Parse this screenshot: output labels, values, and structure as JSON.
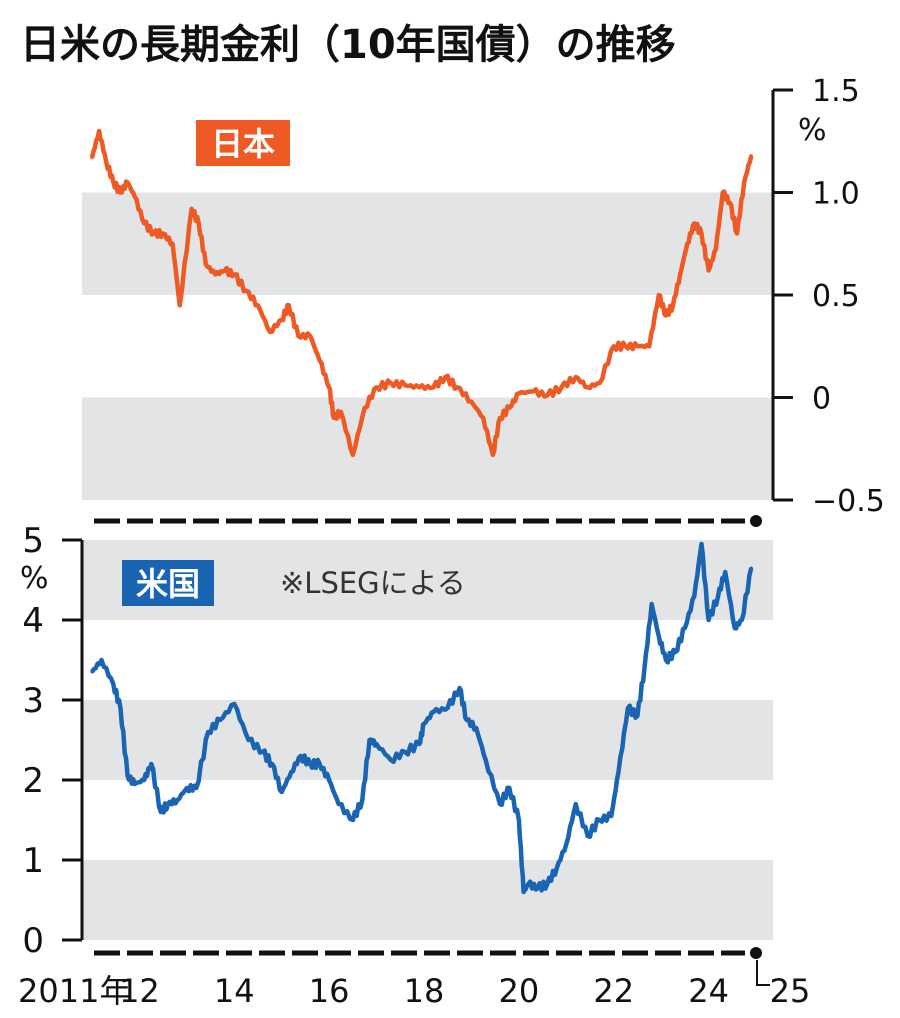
{
  "title": "日米の長期金利（10年国債）の推移",
  "source_note": "※LSEGによる",
  "colors": {
    "japan": "#ef5a24",
    "us": "#1a64b4",
    "band": "#e3e4e6",
    "axis": "#111111"
  },
  "chart_data": [
    {
      "type": "line",
      "label": "日本",
      "y_unit": "%",
      "ylim": [
        -0.5,
        1.5
      ],
      "xlim": [
        2011.0,
        2025.0
      ],
      "y_ticks": [
        {
          "value": 1.5,
          "label": "1.5"
        },
        {
          "value": 1.0,
          "label": "1.0"
        },
        {
          "value": 0.5,
          "label": "0.5"
        },
        {
          "value": 0.0,
          "label": "0"
        },
        {
          "value": -0.5,
          "label": "−0.5"
        }
      ],
      "bands": [
        [
          0.5,
          1.0
        ],
        [
          -0.5,
          0.0
        ]
      ],
      "x": [
        2011.0,
        2011.15,
        2011.3,
        2011.45,
        2011.6,
        2011.75,
        2011.9,
        2012.1,
        2012.3,
        2012.5,
        2012.7,
        2012.85,
        2013.1,
        2013.25,
        2013.4,
        2013.6,
        2013.8,
        2014.0,
        2014.25,
        2014.5,
        2014.75,
        2015.0,
        2015.15,
        2015.35,
        2015.6,
        2015.8,
        2016.0,
        2016.1,
        2016.25,
        2016.5,
        2016.75,
        2017.0,
        2017.3,
        2017.6,
        2017.9,
        2018.2,
        2018.45,
        2018.7,
        2019.0,
        2019.25,
        2019.45,
        2019.6,
        2019.8,
        2020.0,
        2020.3,
        2020.6,
        2020.9,
        2021.2,
        2021.45,
        2021.7,
        2022.0,
        2022.25,
        2022.5,
        2022.75,
        2022.95,
        2023.1,
        2023.25,
        2023.4,
        2023.55,
        2023.7,
        2023.85,
        2024.0,
        2024.15,
        2024.3,
        2024.45,
        2024.6,
        2024.75,
        2024.9
      ],
      "values": [
        1.17,
        1.3,
        1.15,
        1.05,
        1.0,
        1.05,
        0.98,
        0.85,
        0.8,
        0.8,
        0.75,
        0.45,
        0.92,
        0.85,
        0.65,
        0.6,
        0.62,
        0.6,
        0.52,
        0.45,
        0.32,
        0.38,
        0.45,
        0.3,
        0.3,
        0.18,
        0.05,
        -0.1,
        -0.07,
        -0.28,
        -0.05,
        0.05,
        0.07,
        0.06,
        0.05,
        0.05,
        0.1,
        0.05,
        -0.02,
        -0.1,
        -0.28,
        -0.1,
        -0.05,
        0.02,
        0.03,
        0.01,
        0.05,
        0.1,
        0.05,
        0.07,
        0.25,
        0.25,
        0.25,
        0.25,
        0.5,
        0.4,
        0.45,
        0.6,
        0.75,
        0.85,
        0.8,
        0.62,
        0.72,
        1.0,
        0.95,
        0.8,
        1.05,
        1.18
      ]
    },
    {
      "type": "line",
      "label": "米国",
      "y_unit": "%",
      "ylim": [
        0,
        5
      ],
      "xlim": [
        2011.0,
        2025.0
      ],
      "y_ticks": [
        {
          "value": 5,
          "label": "5"
        },
        {
          "value": 4,
          "label": "4"
        },
        {
          "value": 3,
          "label": "3"
        },
        {
          "value": 2,
          "label": "2"
        },
        {
          "value": 1,
          "label": "1"
        },
        {
          "value": 0,
          "label": "0"
        }
      ],
      "bands": [
        [
          4,
          5
        ],
        [
          2,
          3
        ],
        [
          0,
          1
        ]
      ],
      "x": [
        2011.0,
        2011.2,
        2011.45,
        2011.6,
        2011.75,
        2011.9,
        2012.1,
        2012.25,
        2012.45,
        2012.6,
        2012.8,
        2013.0,
        2013.2,
        2013.45,
        2013.7,
        2014.0,
        2014.3,
        2014.6,
        2014.8,
        2015.0,
        2015.2,
        2015.4,
        2015.6,
        2015.8,
        2016.0,
        2016.2,
        2016.5,
        2016.7,
        2016.85,
        2017.0,
        2017.3,
        2017.6,
        2017.9,
        2018.0,
        2018.2,
        2018.5,
        2018.75,
        2018.9,
        2019.1,
        2019.3,
        2019.6,
        2019.8,
        2020.0,
        2020.1,
        2020.2,
        2020.4,
        2020.6,
        2020.8,
        2021.0,
        2021.2,
        2021.45,
        2021.7,
        2021.95,
        2022.1,
        2022.3,
        2022.5,
        2022.65,
        2022.8,
        2022.95,
        2023.1,
        2023.3,
        2023.5,
        2023.7,
        2023.85,
        2024.0,
        2024.2,
        2024.35,
        2024.55,
        2024.7,
        2024.9
      ],
      "values": [
        3.35,
        3.5,
        3.2,
        2.9,
        2.05,
        1.95,
        2.0,
        2.2,
        1.6,
        1.7,
        1.75,
        1.9,
        1.9,
        2.6,
        2.75,
        2.95,
        2.5,
        2.35,
        2.2,
        1.85,
        2.1,
        2.3,
        2.2,
        2.2,
        2.0,
        1.7,
        1.5,
        1.75,
        2.5,
        2.45,
        2.25,
        2.35,
        2.45,
        2.7,
        2.85,
        2.9,
        3.15,
        2.75,
        2.65,
        2.25,
        1.7,
        1.9,
        1.5,
        0.6,
        0.7,
        0.65,
        0.7,
        0.9,
        1.2,
        1.7,
        1.3,
        1.5,
        1.55,
        2.1,
        2.9,
        2.8,
        3.4,
        4.2,
        3.8,
        3.5,
        3.6,
        3.9,
        4.3,
        4.95,
        4.0,
        4.3,
        4.6,
        3.9,
        4.0,
        4.65
      ]
    }
  ],
  "x_axis": {
    "ticks": [
      {
        "value": 2011.0,
        "label": "2011年"
      },
      {
        "value": 2012.0,
        "label": "12"
      },
      {
        "value": 2014.0,
        "label": "14"
      },
      {
        "value": 2016.0,
        "label": "16"
      },
      {
        "value": 2018.0,
        "label": "18"
      },
      {
        "value": 2020.0,
        "label": "20"
      },
      {
        "value": 2022.0,
        "label": "22"
      },
      {
        "value": 2024.0,
        "label": "24"
      },
      {
        "value": 2025.0,
        "label": "25"
      }
    ]
  }
}
